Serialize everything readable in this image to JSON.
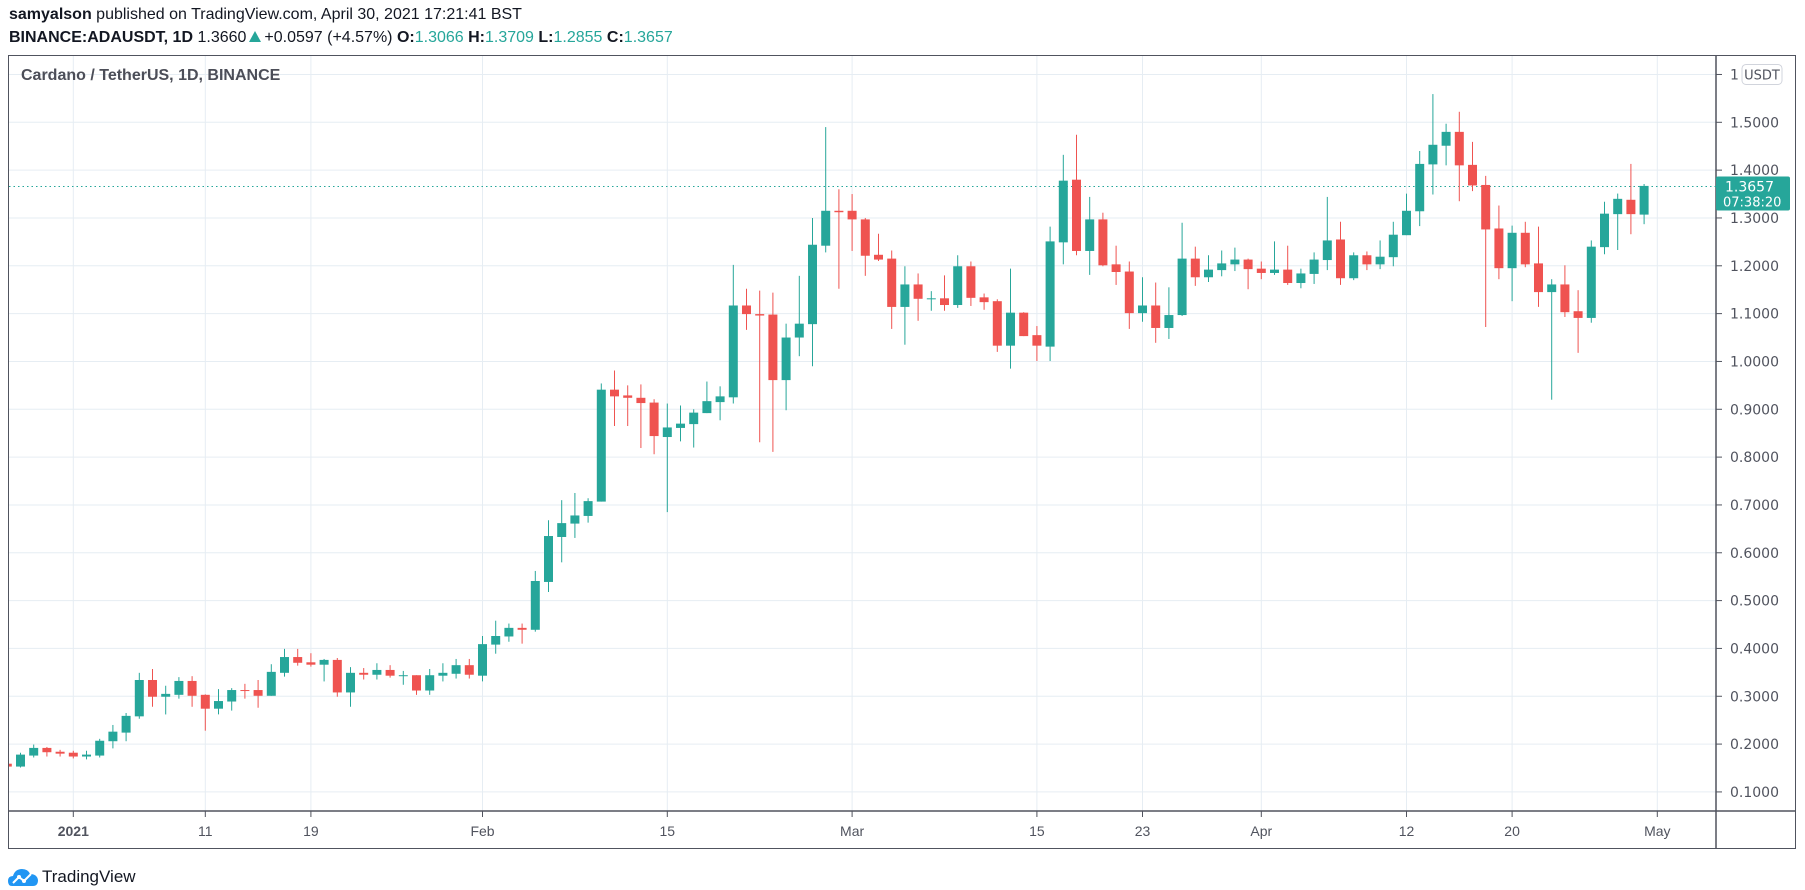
{
  "header": {
    "author": "samyalson",
    "published": "published on TradingView.com, April 30, 2021 17:21:41 BST",
    "symbol": "BINANCE:ADAUSDT, 1D",
    "last": "1.3660",
    "change": "+0.0597 (+4.57%)",
    "o_label": "O:",
    "o": "1.3066",
    "h_label": "H:",
    "h": "1.3709",
    "l_label": "L:",
    "l": "1.2855",
    "c_label": "C:",
    "c": "1.3657"
  },
  "logo_text": "TradingView",
  "colors": {
    "up": "#26a69a",
    "down": "#ef5350",
    "grid": "#e6edf3",
    "axis": "#50535e"
  },
  "chart_data": {
    "type": "candlestick",
    "title": "Cardano / TetherUS, 1D, BINANCE",
    "currency": "USDT",
    "top_clipped_label": "1",
    "first_date": "2020-12-27",
    "ylim": [
      0.03,
      1.66
    ],
    "y_ticks": [
      "0.1000",
      "0.2000",
      "0.3000",
      "0.4000",
      "0.5000",
      "0.6000",
      "0.7000",
      "0.8000",
      "0.9000",
      "1.0000",
      "1.1000",
      "1.2000",
      "1.3000",
      "1.4000",
      "1.5000"
    ],
    "x_ticks": [
      {
        "date": "2021-01-01",
        "label": "2021",
        "bold": true
      },
      {
        "date": "2021-01-11",
        "label": "11"
      },
      {
        "date": "2021-01-19",
        "label": "19"
      },
      {
        "date": "2021-02-01",
        "label": "Feb"
      },
      {
        "date": "2021-02-15",
        "label": "15"
      },
      {
        "date": "2021-03-01",
        "label": "Mar"
      },
      {
        "date": "2021-03-15",
        "label": "15"
      },
      {
        "date": "2021-03-23",
        "label": "23"
      },
      {
        "date": "2021-04-01",
        "label": "Apr"
      },
      {
        "date": "2021-04-12",
        "label": "12"
      },
      {
        "date": "2021-04-20",
        "label": "20"
      },
      {
        "date": "2021-05-01",
        "label": "May"
      }
    ],
    "last_price": {
      "value": 1.3657,
      "label": "1.3657",
      "countdown": "07:38:20"
    },
    "ohlc_fields": [
      "open",
      "high",
      "low",
      "close"
    ],
    "candles": [
      [
        0.159,
        0.162,
        0.152,
        0.153
      ],
      [
        0.153,
        0.182,
        0.151,
        0.178
      ],
      [
        0.176,
        0.199,
        0.172,
        0.192
      ],
      [
        0.192,
        0.194,
        0.174,
        0.183
      ],
      [
        0.184,
        0.188,
        0.174,
        0.18
      ],
      [
        0.182,
        0.186,
        0.17,
        0.174
      ],
      [
        0.174,
        0.186,
        0.168,
        0.178
      ],
      [
        0.176,
        0.211,
        0.172,
        0.207
      ],
      [
        0.206,
        0.24,
        0.191,
        0.226
      ],
      [
        0.224,
        0.265,
        0.206,
        0.259
      ],
      [
        0.258,
        0.349,
        0.253,
        0.334
      ],
      [
        0.334,
        0.357,
        0.278,
        0.299
      ],
      [
        0.299,
        0.322,
        0.262,
        0.305
      ],
      [
        0.303,
        0.34,
        0.295,
        0.332
      ],
      [
        0.332,
        0.342,
        0.278,
        0.301
      ],
      [
        0.303,
        0.304,
        0.228,
        0.274
      ],
      [
        0.274,
        0.315,
        0.262,
        0.29
      ],
      [
        0.289,
        0.317,
        0.27,
        0.313
      ],
      [
        0.313,
        0.326,
        0.295,
        0.312
      ],
      [
        0.313,
        0.334,
        0.276,
        0.301
      ],
      [
        0.301,
        0.367,
        0.301,
        0.351
      ],
      [
        0.349,
        0.399,
        0.341,
        0.382
      ],
      [
        0.382,
        0.399,
        0.364,
        0.37
      ],
      [
        0.371,
        0.39,
        0.362,
        0.366
      ],
      [
        0.366,
        0.378,
        0.331,
        0.376
      ],
      [
        0.376,
        0.38,
        0.299,
        0.308
      ],
      [
        0.308,
        0.361,
        0.278,
        0.349
      ],
      [
        0.349,
        0.359,
        0.335,
        0.345
      ],
      [
        0.345,
        0.369,
        0.335,
        0.355
      ],
      [
        0.355,
        0.365,
        0.339,
        0.343
      ],
      [
        0.343,
        0.353,
        0.324,
        0.344
      ],
      [
        0.344,
        0.344,
        0.303,
        0.312
      ],
      [
        0.312,
        0.357,
        0.303,
        0.344
      ],
      [
        0.343,
        0.369,
        0.331,
        0.349
      ],
      [
        0.347,
        0.378,
        0.337,
        0.365
      ],
      [
        0.365,
        0.378,
        0.337,
        0.345
      ],
      [
        0.343,
        0.426,
        0.331,
        0.409
      ],
      [
        0.408,
        0.458,
        0.389,
        0.426
      ],
      [
        0.425,
        0.452,
        0.414,
        0.443
      ],
      [
        0.443,
        0.452,
        0.41,
        0.439
      ],
      [
        0.439,
        0.562,
        0.435,
        0.541
      ],
      [
        0.539,
        0.668,
        0.518,
        0.635
      ],
      [
        0.633,
        0.71,
        0.58,
        0.662
      ],
      [
        0.661,
        0.725,
        0.631,
        0.678
      ],
      [
        0.677,
        0.714,
        0.663,
        0.708
      ],
      [
        0.707,
        0.954,
        0.707,
        0.941
      ],
      [
        0.941,
        0.981,
        0.865,
        0.927
      ],
      [
        0.929,
        0.95,
        0.865,
        0.924
      ],
      [
        0.924,
        0.952,
        0.819,
        0.913
      ],
      [
        0.914,
        0.921,
        0.806,
        0.844
      ],
      [
        0.842,
        0.912,
        0.685,
        0.862
      ],
      [
        0.861,
        0.908,
        0.833,
        0.87
      ],
      [
        0.869,
        0.9,
        0.82,
        0.893
      ],
      [
        0.892,
        0.958,
        0.892,
        0.917
      ],
      [
        0.915,
        0.948,
        0.877,
        0.927
      ],
      [
        0.925,
        1.202,
        0.912,
        1.117
      ],
      [
        1.117,
        1.152,
        1.066,
        1.099
      ],
      [
        1.099,
        1.148,
        0.831,
        1.096
      ],
      [
        1.098,
        1.144,
        0.811,
        0.961
      ],
      [
        0.961,
        1.079,
        0.898,
        1.05
      ],
      [
        1.05,
        1.179,
        1.011,
        1.079
      ],
      [
        1.078,
        1.3,
        0.99,
        1.244
      ],
      [
        1.242,
        1.49,
        1.228,
        1.315
      ],
      [
        1.315,
        1.36,
        1.152,
        1.312
      ],
      [
        1.315,
        1.35,
        1.231,
        1.297
      ],
      [
        1.297,
        1.3,
        1.179,
        1.221
      ],
      [
        1.223,
        1.267,
        1.21,
        1.213
      ],
      [
        1.215,
        1.232,
        1.068,
        1.114
      ],
      [
        1.114,
        1.199,
        1.035,
        1.161
      ],
      [
        1.161,
        1.184,
        1.085,
        1.131
      ],
      [
        1.131,
        1.147,
        1.106,
        1.132
      ],
      [
        1.132,
        1.18,
        1.106,
        1.118
      ],
      [
        1.118,
        1.222,
        1.112,
        1.199
      ],
      [
        1.199,
        1.209,
        1.116,
        1.133
      ],
      [
        1.134,
        1.142,
        1.108,
        1.124
      ],
      [
        1.126,
        1.13,
        1.02,
        1.033
      ],
      [
        1.033,
        1.194,
        0.985,
        1.102
      ],
      [
        1.102,
        1.103,
        1.053,
        1.053
      ],
      [
        1.055,
        1.074,
        1.001,
        1.033
      ],
      [
        1.031,
        1.282,
        1.001,
        1.251
      ],
      [
        1.249,
        1.432,
        1.203,
        1.378
      ],
      [
        1.38,
        1.474,
        1.222,
        1.231
      ],
      [
        1.231,
        1.344,
        1.181,
        1.297
      ],
      [
        1.297,
        1.311,
        1.199,
        1.201
      ],
      [
        1.203,
        1.242,
        1.16,
        1.187
      ],
      [
        1.188,
        1.209,
        1.068,
        1.101
      ],
      [
        1.101,
        1.176,
        1.083,
        1.117
      ],
      [
        1.117,
        1.165,
        1.039,
        1.07
      ],
      [
        1.07,
        1.155,
        1.047,
        1.097
      ],
      [
        1.097,
        1.29,
        1.095,
        1.215
      ],
      [
        1.215,
        1.24,
        1.158,
        1.176
      ],
      [
        1.176,
        1.222,
        1.166,
        1.192
      ],
      [
        1.191,
        1.232,
        1.178,
        1.205
      ],
      [
        1.203,
        1.238,
        1.189,
        1.213
      ],
      [
        1.213,
        1.215,
        1.151,
        1.193
      ],
      [
        1.194,
        1.209,
        1.172,
        1.185
      ],
      [
        1.185,
        1.251,
        1.181,
        1.192
      ],
      [
        1.192,
        1.242,
        1.16,
        1.164
      ],
      [
        1.164,
        1.194,
        1.153,
        1.184
      ],
      [
        1.183,
        1.228,
        1.162,
        1.213
      ],
      [
        1.212,
        1.344,
        1.191,
        1.253
      ],
      [
        1.255,
        1.292,
        1.16,
        1.174
      ],
      [
        1.174,
        1.228,
        1.17,
        1.222
      ],
      [
        1.222,
        1.23,
        1.191,
        1.203
      ],
      [
        1.203,
        1.253,
        1.193,
        1.219
      ],
      [
        1.218,
        1.292,
        1.199,
        1.265
      ],
      [
        1.264,
        1.351,
        1.264,
        1.315
      ],
      [
        1.314,
        1.44,
        1.283,
        1.413
      ],
      [
        1.412,
        1.559,
        1.349,
        1.453
      ],
      [
        1.451,
        1.497,
        1.41,
        1.48
      ],
      [
        1.48,
        1.522,
        1.335,
        1.41
      ],
      [
        1.411,
        1.459,
        1.356,
        1.368
      ],
      [
        1.369,
        1.388,
        1.072,
        1.276
      ],
      [
        1.278,
        1.326,
        1.172,
        1.195
      ],
      [
        1.195,
        1.284,
        1.126,
        1.269
      ],
      [
        1.269,
        1.292,
        1.197,
        1.203
      ],
      [
        1.205,
        1.282,
        1.114,
        1.145
      ],
      [
        1.145,
        1.172,
        0.92,
        1.161
      ],
      [
        1.161,
        1.201,
        1.093,
        1.103
      ],
      [
        1.105,
        1.149,
        1.018,
        1.091
      ],
      [
        1.091,
        1.253,
        1.081,
        1.24
      ],
      [
        1.239,
        1.334,
        1.224,
        1.309
      ],
      [
        1.308,
        1.351,
        1.233,
        1.34
      ],
      [
        1.338,
        1.413,
        1.266,
        1.308
      ],
      [
        1.307,
        1.371,
        1.287,
        1.367
      ]
    ]
  }
}
